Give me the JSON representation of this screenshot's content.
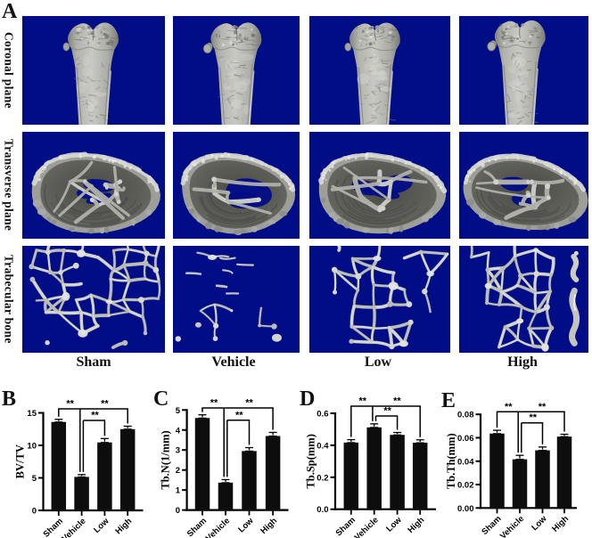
{
  "figure": {
    "panel_a": {
      "label": "A",
      "row_labels": [
        "Coronal plane",
        "Transverse plane",
        "Trabecular bone"
      ],
      "column_labels": [
        "Sham",
        "Vehicle",
        "Low",
        "High"
      ]
    },
    "colors": {
      "tile_background": "#000D87",
      "bar": "#0d0d0d",
      "text": "#111111"
    }
  },
  "chart_data": [
    {
      "panel": "B",
      "type": "bar",
      "categories": [
        "Sham",
        "Vehicle",
        "Low",
        "High"
      ],
      "values": [
        13.6,
        5.15,
        10.45,
        12.5
      ],
      "errors": [
        0.4,
        0.35,
        0.6,
        0.45
      ],
      "ylabel": "BV/TV",
      "ylim": [
        0,
        15
      ],
      "yticks": [
        0,
        5,
        10,
        15
      ],
      "ytick_labels": [
        "0",
        "5",
        "10",
        "15"
      ],
      "significance": [
        {
          "pair": [
            0,
            1
          ],
          "label": "**"
        },
        {
          "pair": [
            1,
            2
          ],
          "label": "**"
        },
        {
          "pair": [
            1,
            3
          ],
          "label": "**"
        }
      ]
    },
    {
      "panel": "C",
      "type": "bar",
      "categories": [
        "Sham",
        "Vehicle",
        "Low",
        "High"
      ],
      "values": [
        4.6,
        1.37,
        2.95,
        3.7
      ],
      "errors": [
        0.16,
        0.15,
        0.17,
        0.18
      ],
      "ylabel": "Tb.N(1/mm)",
      "ylim": [
        0,
        5
      ],
      "yticks": [
        0,
        1,
        2,
        3,
        4,
        5
      ],
      "ytick_labels": [
        "0",
        "1",
        "2",
        "3",
        "4",
        "5"
      ],
      "significance": [
        {
          "pair": [
            0,
            1
          ],
          "label": "**"
        },
        {
          "pair": [
            1,
            2
          ],
          "label": "**"
        },
        {
          "pair": [
            1,
            3
          ],
          "label": "**"
        }
      ]
    },
    {
      "panel": "D",
      "type": "bar",
      "categories": [
        "Sham",
        "Vehicle",
        "Low",
        "High"
      ],
      "values": [
        0.417,
        0.512,
        0.465,
        0.416
      ],
      "errors": [
        0.018,
        0.022,
        0.015,
        0.018
      ],
      "ylabel": "Tb.Sp(mm)",
      "ylim": [
        0,
        0.6
      ],
      "yticks": [
        0,
        0.2,
        0.4,
        0.6
      ],
      "ytick_labels": [
        "0.0",
        "0.2",
        "0.4",
        "0.6"
      ],
      "significance": [
        {
          "pair": [
            0,
            1
          ],
          "label": "**"
        },
        {
          "pair": [
            1,
            2
          ],
          "label": "**"
        },
        {
          "pair": [
            1,
            3
          ],
          "label": "**"
        }
      ]
    },
    {
      "panel": "E",
      "type": "bar",
      "categories": [
        "Sham",
        "Vehicle",
        "Low",
        "High"
      ],
      "values": [
        0.0636,
        0.0416,
        0.0493,
        0.061
      ],
      "errors": [
        0.0028,
        0.0034,
        0.0028,
        0.002
      ],
      "ylabel": "Tb.Th(mm)",
      "ylim": [
        0,
        0.08
      ],
      "yticks": [
        0,
        0.02,
        0.04,
        0.06,
        0.08
      ],
      "ytick_labels": [
        "0.00",
        "0.02",
        "0.04",
        "0.06",
        "0.08"
      ],
      "significance": [
        {
          "pair": [
            0,
            1
          ],
          "label": "**"
        },
        {
          "pair": [
            1,
            2
          ],
          "label": "**"
        },
        {
          "pair": [
            1,
            3
          ],
          "label": "**"
        }
      ]
    }
  ]
}
